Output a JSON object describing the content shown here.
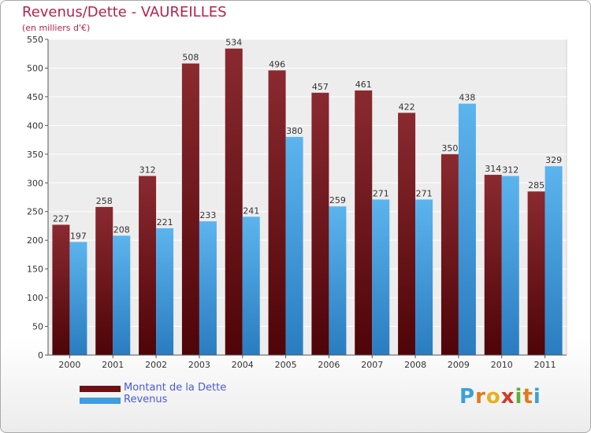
{
  "title": "Revenus/Dette - VAUREILLES",
  "subtitle": "(en milliers d'€)",
  "logo": {
    "letters": [
      {
        "ch": "P",
        "color": "#3aa0d8"
      },
      {
        "ch": "r",
        "color": "#e07a20"
      },
      {
        "ch": "o",
        "color": "#e8b020"
      },
      {
        "ch": "x",
        "color": "#d03a2a"
      },
      {
        "ch": "i",
        "color": "#5ab03a"
      },
      {
        "ch": "t",
        "color": "#e07a20"
      },
      {
        "ch": "i",
        "color": "#3aa0d8"
      }
    ]
  },
  "colors": {
    "dette": "#6e1014",
    "revenus": "#3d9ee0",
    "title": "#b6224c",
    "legend_text": "#4a5bd6"
  },
  "chart_data": {
    "type": "bar",
    "categories": [
      "2000",
      "2001",
      "2002",
      "2003",
      "2004",
      "2005",
      "2006",
      "2007",
      "2008",
      "2009",
      "2010",
      "2011"
    ],
    "series": [
      {
        "name": "Montant de la Dette",
        "values": [
          227,
          258,
          312,
          508,
          534,
          496,
          457,
          461,
          422,
          350,
          314,
          285
        ]
      },
      {
        "name": "Revenus",
        "values": [
          197,
          208,
          221,
          233,
          241,
          380,
          259,
          271,
          271,
          438,
          312,
          329
        ]
      }
    ],
    "yticks": [
      0,
      50,
      100,
      150,
      200,
      250,
      300,
      350,
      400,
      450,
      500,
      550
    ],
    "ylim": [
      0,
      550
    ],
    "grid": true,
    "legend": "bottom-left"
  }
}
